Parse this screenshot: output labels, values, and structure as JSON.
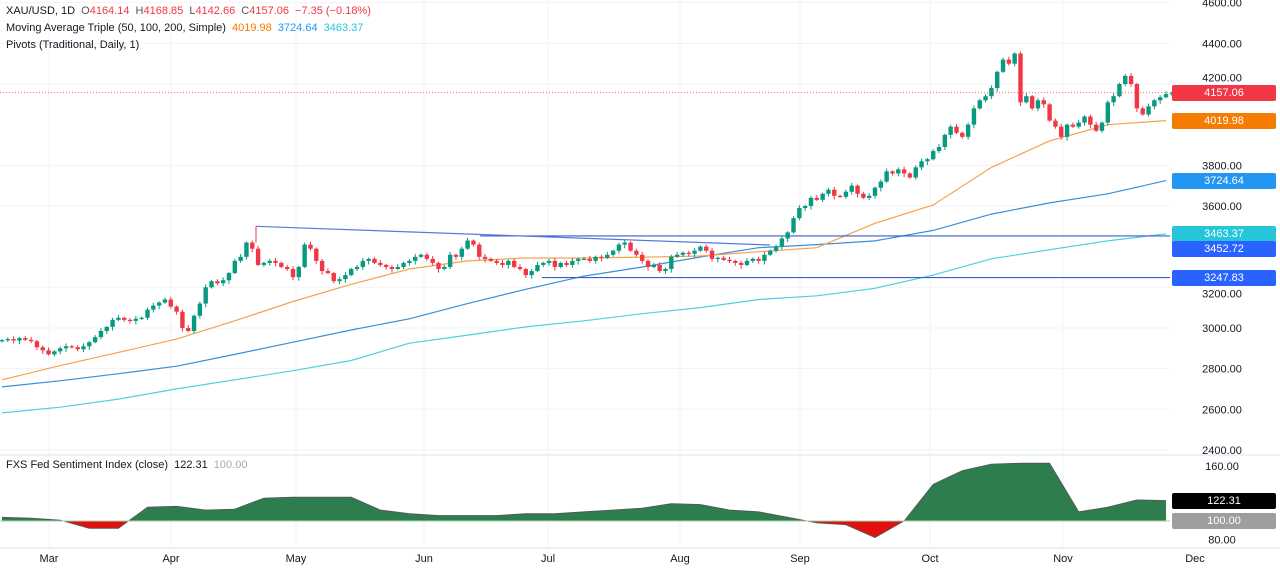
{
  "legend": {
    "symbol": "XAU/USD, 1D",
    "open_label": "O",
    "open": "4164.14",
    "high_label": "H",
    "high": "4168.85",
    "low_label": "L",
    "low": "4142.66",
    "close_label": "C",
    "close": "4157.06",
    "change": "−7.35 (−0.18%)",
    "ma_title": "Moving Average Triple (50, 100, 200, Simple)",
    "ma50": "4019.98",
    "ma100": "3724.64",
    "ma200": "3463.37",
    "pivots_title": "Pivots (Traditional, Daily, 1)",
    "sentiment_title": "FXS Fed Sentiment Index (close)",
    "sentiment_value": "122.31",
    "sentiment_base": "100.00"
  },
  "colors": {
    "up": "#089981",
    "down": "#f23645",
    "ma50": "#f7a24b",
    "ma100": "#3a8fd8",
    "ma200": "#4dd0e1",
    "pivot": "#3b5ccc",
    "trendline": "#5a7bd8",
    "sentiment_pos": "#2e7d4f",
    "sentiment_neg": "#e01010",
    "tag_close": "#f23645",
    "tag_ma50": "#f57c00",
    "tag_ma100": "#2196f3",
    "tag_ma200": "#26c6da",
    "tag_pivot": "#2962ff",
    "tag_sent": "#000000",
    "tag_base": "#9e9e9e"
  },
  "chart_data": [
    {
      "type": "candlestick",
      "ylim": [
        2400,
        4600
      ],
      "y_ticks": [
        "4600.00",
        "4400.00",
        "4200.00",
        "3800.00",
        "3600.00",
        "3200.00",
        "3000.00",
        "2800.00",
        "2600.00",
        "2400.00"
      ],
      "x_ticks": [
        "Mar",
        "Apr",
        "May",
        "Jun",
        "Jul",
        "Aug",
        "Sep",
        "Oct",
        "Nov",
        "Dec"
      ],
      "closes": [
        2940,
        2945,
        2938,
        2950,
        2942,
        2935,
        2905,
        2890,
        2870,
        2885,
        2900,
        2910,
        2905,
        2895,
        2910,
        2930,
        2955,
        2985,
        3005,
        3040,
        3050,
        3040,
        3035,
        3045,
        3050,
        3090,
        3110,
        3125,
        3140,
        3105,
        3080,
        3000,
        2985,
        3060,
        3120,
        3200,
        3230,
        3220,
        3235,
        3270,
        3330,
        3350,
        3420,
        3390,
        3310,
        3320,
        3330,
        3320,
        3300,
        3290,
        3250,
        3300,
        3410,
        3390,
        3330,
        3280,
        3270,
        3230,
        3240,
        3260,
        3290,
        3300,
        3330,
        3340,
        3320,
        3310,
        3300,
        3290,
        3300,
        3320,
        3330,
        3350,
        3360,
        3340,
        3320,
        3290,
        3300,
        3360,
        3350,
        3390,
        3430,
        3410,
        3350,
        3340,
        3330,
        3320,
        3310,
        3330,
        3300,
        3290,
        3260,
        3280,
        3310,
        3320,
        3330,
        3300,
        3320,
        3310,
        3330,
        3340,
        3340,
        3330,
        3350,
        3345,
        3360,
        3380,
        3410,
        3420,
        3380,
        3360,
        3330,
        3300,
        3310,
        3280,
        3290,
        3350,
        3360,
        3370,
        3365,
        3380,
        3400,
        3380,
        3340,
        3345,
        3335,
        3330,
        3320,
        3310,
        3330,
        3340,
        3330,
        3360,
        3380,
        3400,
        3440,
        3470,
        3540,
        3590,
        3600,
        3640,
        3630,
        3660,
        3680,
        3650,
        3645,
        3670,
        3700,
        3660,
        3640,
        3650,
        3690,
        3720,
        3770,
        3760,
        3780,
        3760,
        3740,
        3790,
        3820,
        3830,
        3870,
        3890,
        3950,
        3990,
        3960,
        3940,
        4000,
        4080,
        4120,
        4140,
        4180,
        4260,
        4320,
        4300,
        4350,
        4110,
        4140,
        4080,
        4120,
        4100,
        4020,
        3990,
        3940,
        4000,
        3990,
        4010,
        4040,
        4000,
        3970,
        4010,
        4110,
        4140,
        4200,
        4240,
        4200,
        4080,
        4050,
        4090,
        4120,
        4135,
        4150,
        4157.06
      ],
      "ma_sampled_every_10_bars": {
        "ma50": [
          2745,
          2815,
          2880,
          2945,
          3035,
          3130,
          3215,
          3290,
          3330,
          3344,
          3344,
          3348,
          3354,
          3375,
          3395,
          3515,
          3605,
          3790,
          3920,
          4000,
          4019.98
        ],
        "ma100": [
          2710,
          2740,
          2775,
          2812,
          2870,
          2930,
          2990,
          3045,
          3120,
          3190,
          3255,
          3300,
          3349,
          3395,
          3410,
          3428,
          3480,
          3560,
          3615,
          3660,
          3724.64
        ],
        "ma200": [
          2582,
          2610,
          2650,
          2700,
          2745,
          2790,
          2840,
          2925,
          2965,
          3005,
          3035,
          3070,
          3100,
          3140,
          3158,
          3195,
          3260,
          3340,
          3385,
          3428,
          3463.37
        ]
      },
      "pivots": [
        {
          "label": "3452.72",
          "value": 3452.72,
          "from_month": "Jun"
        },
        {
          "label": "3247.83",
          "value": 3247.83,
          "from_month": "Jul"
        }
      ],
      "trendline": {
        "from_value": 3500,
        "to_value": 3408
      },
      "price_tags": [
        {
          "label": "4157.06",
          "value": 4157.06,
          "color_key": "tag_close"
        },
        {
          "label": "4019.98",
          "value": 4019.98,
          "color_key": "tag_ma50"
        },
        {
          "label": "3724.64",
          "value": 3724.64,
          "color_key": "tag_ma100"
        },
        {
          "label": "3463.37",
          "value": 3463.37,
          "color_key": "tag_ma200"
        },
        {
          "label": "3452.72",
          "value": 3452.72,
          "color_key": "tag_pivot"
        },
        {
          "label": "3247.83",
          "value": 3247.83,
          "color_key": "tag_pivot"
        }
      ]
    },
    {
      "type": "area",
      "title": "FXS Fed Sentiment Index (close)",
      "baseline": 100,
      "ylim": [
        75,
        170
      ],
      "y_ticks": [
        "160.00",
        "80.00"
      ],
      "values_sampled_every_5_bars": [
        104,
        103,
        101,
        92,
        92,
        115,
        116,
        112,
        113,
        125,
        126,
        126,
        126,
        112,
        108,
        106,
        106,
        106,
        108,
        108,
        110,
        112,
        114,
        119,
        118,
        112,
        110,
        104,
        98,
        96,
        82,
        100,
        140,
        155,
        162,
        163,
        163,
        110,
        115,
        123,
        122.31
      ],
      "tags": [
        {
          "label": "122.31",
          "value": 122.31,
          "color_key": "tag_sent"
        },
        {
          "label": "100.00",
          "value": 100,
          "color_key": "tag_base"
        }
      ]
    }
  ]
}
